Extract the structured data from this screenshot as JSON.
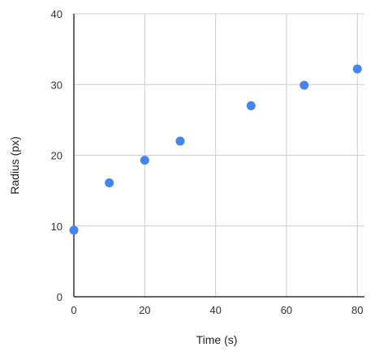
{
  "chart_data": {
    "type": "scatter",
    "title": "",
    "xlabel": "Time (s)",
    "ylabel": "Radius (px)",
    "xlim": [
      0,
      82
    ],
    "ylim": [
      0,
      40
    ],
    "x_ticks": [
      0,
      20,
      40,
      60,
      80
    ],
    "y_ticks": [
      0,
      10,
      20,
      30,
      40
    ],
    "grid": true,
    "legend": "none",
    "point_color": "#4285F4",
    "grid_color": "#cccccc",
    "axis_color": "#333333",
    "series": [
      {
        "points": [
          {
            "x": 0,
            "y": 9.4
          },
          {
            "x": 10,
            "y": 16.1
          },
          {
            "x": 20,
            "y": 19.3
          },
          {
            "x": 30,
            "y": 22.0
          },
          {
            "x": 50,
            "y": 27.0
          },
          {
            "x": 65,
            "y": 29.9
          },
          {
            "x": 80,
            "y": 32.2
          }
        ]
      }
    ]
  }
}
